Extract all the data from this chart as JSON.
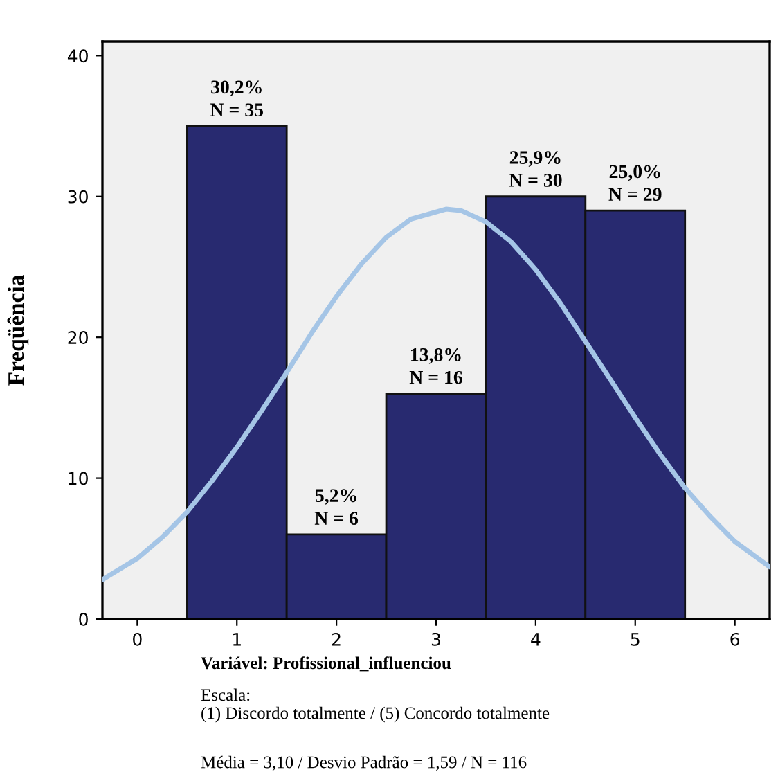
{
  "chart_data": {
    "type": "histogram",
    "ylabel": "Freqüência",
    "series": [
      {
        "bins": [
          0.5,
          1.5,
          2.5,
          3.5,
          4.5,
          5.5
        ],
        "values": [
          35,
          6,
          16,
          30,
          29
        ],
        "color": "#282a70",
        "value_labels": [
          "30,2%\nN = 35",
          "5,2%\nN = 6",
          "13,8%\nN = 16",
          "25,9%\nN = 30",
          "25,0%\nN = 29"
        ]
      },
      {
        "type": "line",
        "color": "#a5c5e6",
        "x": [
          -0.35,
          0,
          0.25,
          0.5,
          0.75,
          1,
          1.25,
          1.5,
          1.75,
          2,
          2.25,
          2.5,
          2.75,
          3.1,
          3.25,
          3.5,
          3.75,
          4,
          4.25,
          4.5,
          4.75,
          5,
          5.25,
          5.5,
          5.75,
          6,
          6.35
        ],
        "values": [
          2.8,
          4.3,
          5.8,
          7.6,
          9.8,
          12.2,
          14.8,
          17.5,
          20.3,
          22.9,
          25.2,
          27.1,
          28.4,
          29.1,
          29.0,
          28.2,
          26.8,
          24.8,
          22.4,
          19.7,
          17.0,
          14.3,
          11.7,
          9.3,
          7.3,
          5.5,
          3.7
        ]
      }
    ],
    "xlim": [
      -0.35,
      6.35
    ],
    "ylim": [
      0,
      41
    ],
    "xticks": [
      0,
      1,
      2,
      3,
      4,
      5,
      6
    ],
    "yticks": [
      0,
      10,
      20,
      30,
      40
    ],
    "grid": false,
    "annotations": [
      "Variável: Profissional_influenciou",
      "Escala:\n(1) Discordo totalmente / (5) Concordo totalmente",
      "Média = 3,10 / Desvio Padrão = 1,59 / N = 116"
    ]
  }
}
